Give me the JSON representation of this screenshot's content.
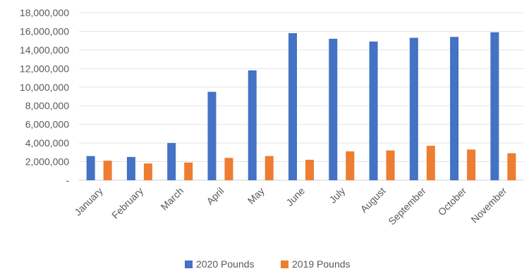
{
  "chart_data": {
    "type": "bar",
    "title": "",
    "xlabel": "",
    "ylabel": "",
    "categories": [
      "January",
      "February",
      "March",
      "April",
      "May",
      "June",
      "July",
      "August",
      "September",
      "October",
      "November"
    ],
    "series": [
      {
        "name": "2020 Pounds",
        "color": "#4472C4",
        "values": [
          2600000,
          2500000,
          4000000,
          9500000,
          11800000,
          15800000,
          15200000,
          14900000,
          15300000,
          15400000,
          15900000
        ]
      },
      {
        "name": "2019 Pounds",
        "color": "#ED7D31",
        "values": [
          2100000,
          1800000,
          1900000,
          2400000,
          2600000,
          2200000,
          3100000,
          3200000,
          3700000,
          3300000,
          2900000
        ]
      }
    ],
    "ylim": [
      0,
      18000000
    ],
    "yticks": [
      0,
      2000000,
      4000000,
      6000000,
      8000000,
      10000000,
      12000000,
      14000000,
      16000000,
      18000000
    ],
    "ytick_labels": [
      "-",
      "2,000,000",
      "4,000,000",
      "6,000,000",
      "8,000,000",
      "10,000,000",
      "12,000,000",
      "14,000,000",
      "16,000,000",
      "18,000,000"
    ],
    "grid": true,
    "legend": "bottom"
  }
}
